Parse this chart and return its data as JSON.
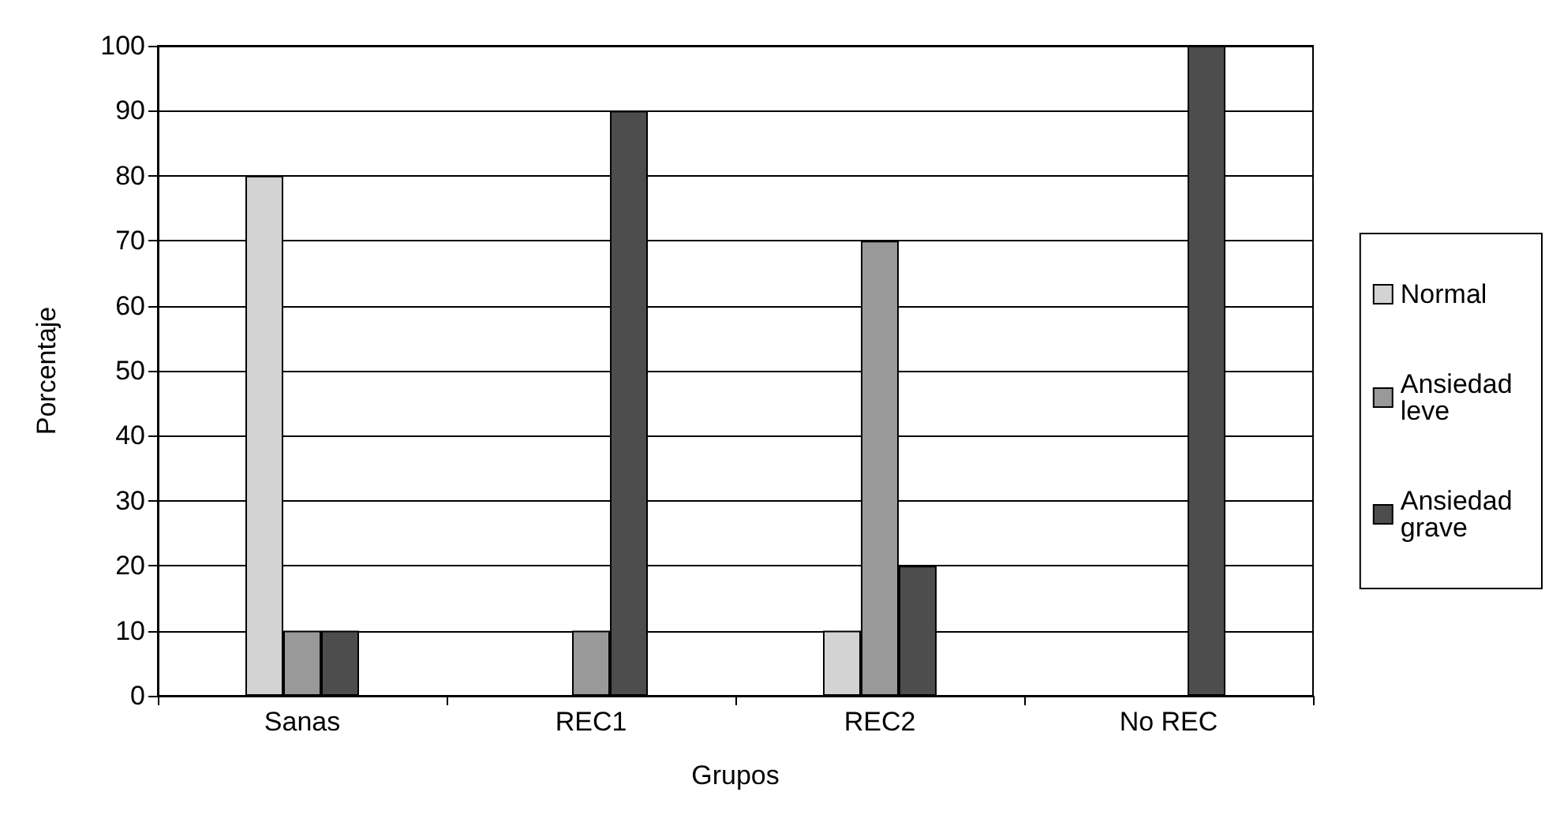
{
  "chart_data": {
    "type": "bar",
    "xlabel": "Grupos",
    "ylabel": "Porcentaje",
    "categories": [
      "Sanas",
      "REC1",
      "REC2",
      "No REC"
    ],
    "series": [
      {
        "name": "Normal",
        "color": "#d3d3d3",
        "values": [
          80,
          0,
          10,
          0
        ]
      },
      {
        "name": "Ansiedad leve",
        "color": "#999999",
        "values": [
          10,
          10,
          70,
          0
        ]
      },
      {
        "name": "Ansiedad grave",
        "color": "#4d4d4d",
        "values": [
          10,
          90,
          20,
          100
        ]
      }
    ],
    "ylim": [
      0,
      100
    ],
    "yticks": [
      0,
      10,
      20,
      30,
      40,
      50,
      60,
      70,
      80,
      90,
      100
    ],
    "grid": "y",
    "legend": "right"
  }
}
